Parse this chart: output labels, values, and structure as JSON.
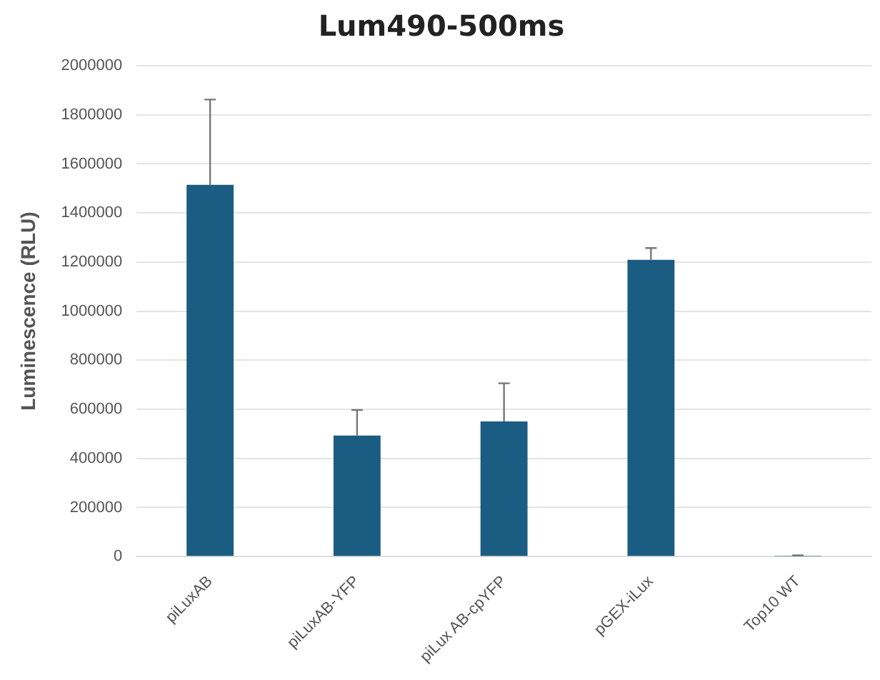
{
  "chart_data": {
    "type": "bar",
    "title": "Lum490-500ms",
    "ylabel": "Luminescence (RLU)",
    "categories": [
      "piLuxAB",
      "piLuxAB-YFP",
      "piLux AB-cpYFP",
      "pGEX-iLux",
      "Top10 WT"
    ],
    "values": [
      1515000,
      493000,
      551000,
      1209000,
      1000
    ],
    "errors": [
      [
        1515000,
        1862000
      ],
      [
        493000,
        597000
      ],
      [
        551000,
        706000
      ],
      [
        1209000,
        1257000
      ],
      [
        1000,
        5000
      ]
    ],
    "color": "#1a5c82",
    "ylim": [
      0,
      2000000
    ],
    "yticks": [
      0,
      200000,
      400000,
      600000,
      800000,
      1000000,
      1200000,
      1400000,
      1600000,
      1800000,
      2000000
    ],
    "grid": "y",
    "legend": false
  }
}
